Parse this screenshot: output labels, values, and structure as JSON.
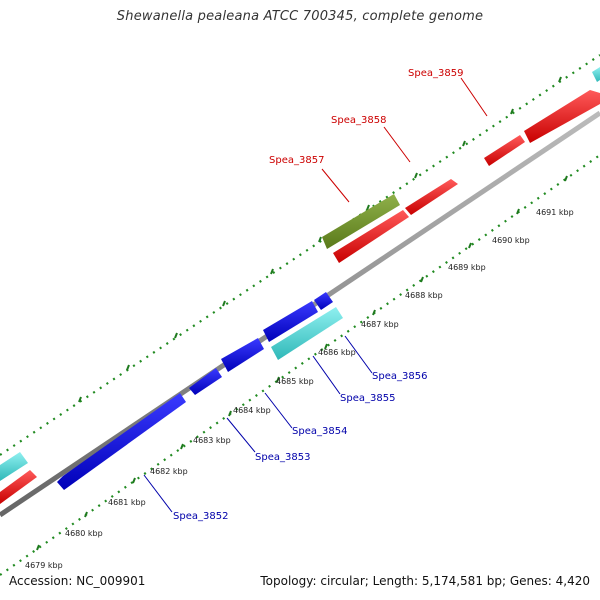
{
  "title": "Shewanella pealeana ATCC 700345, complete genome",
  "footer": {
    "accession": "Accession: NC_009901",
    "summary": "Topology: circular; Length: 5,174,581 bp; Genes: 4,420"
  },
  "scale": {
    "labels": [
      "4679 kbp",
      "4680 kbp",
      "4681 kbp",
      "4682 kbp",
      "4683 kbp",
      "4684 kbp",
      "4685 kbp",
      "4686 kbp",
      "4687 kbp",
      "4688 kbp",
      "4689 kbp",
      "4690 kbp",
      "4691 kbp"
    ]
  },
  "genes_forward": [
    {
      "label": "Spea_3857",
      "color": "#cc0000"
    },
    {
      "label": "Spea_3858",
      "color": "#cc0000"
    },
    {
      "label": "Spea_3859",
      "color": "#cc0000"
    }
  ],
  "genes_reverse": [
    {
      "label": "Spea_3852",
      "color": "#0000aa"
    },
    {
      "label": "Spea_3853",
      "color": "#0000aa"
    },
    {
      "label": "Spea_3854",
      "color": "#0000aa"
    },
    {
      "label": "Spea_3855",
      "color": "#0000aa"
    },
    {
      "label": "Spea_3856",
      "color": "#0000aa"
    }
  ],
  "colors": {
    "forward_cds": "#ff0000",
    "reverse_cds": "#0000ee",
    "rna_feature": "#55cccc",
    "other_feature": "#6b8e23",
    "backbone": "#999999",
    "gc_ticks": "#228b22"
  }
}
